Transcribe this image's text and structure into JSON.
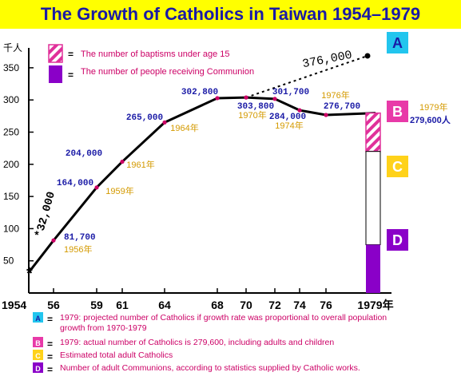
{
  "title": "The Growth of Catholics in Taiwan 1954–1979",
  "colors": {
    "title_bg": "#ffff00",
    "title_text": "#1a1aa6",
    "line": "#000000",
    "point": "#cc0066",
    "value_label": "#1a1aa6",
    "year_label": "#d49a00",
    "note": "#cc0066",
    "baptism": "#e0309a",
    "communion": "#8a00c8",
    "box_a": "#22c5ee",
    "box_b": "#e83aa8",
    "box_c": "#ffd21a",
    "box_d": "#8a00c8",
    "box_letter_a": "#1a1aa6"
  },
  "legend": {
    "items": [
      {
        "label": "The number of baptisms under age 15"
      },
      {
        "label": "The number of people receiving Communion"
      }
    ],
    "equals": "="
  },
  "chart_data": {
    "type": "line",
    "title": "The Growth of Catholics in Taiwan 1954–1979",
    "y_unit": "千人",
    "ylim": [
      0,
      375
    ],
    "y_ticks": [
      50,
      100,
      150,
      200,
      250,
      300,
      350
    ],
    "x_ticks": [
      "1954",
      "56",
      "59",
      "61",
      "64",
      "68",
      "70",
      "72",
      "74",
      "76",
      "1979年"
    ],
    "x_tick_years": [
      1954,
      1956,
      1959,
      1961,
      1964,
      1968,
      1970,
      1972,
      1974,
      1976,
      1979
    ],
    "grid": false,
    "legend_position": "top-left",
    "series": [
      {
        "points": [
          {
            "x": 1954,
            "y": 32,
            "value": "*32,000",
            "year": ""
          },
          {
            "x": 1956,
            "y": 81.7,
            "value": "81,700",
            "year": "1956年"
          },
          {
            "x": 1959,
            "y": 164,
            "value": "164,000",
            "year": "1959年"
          },
          {
            "x": 1961,
            "y": 204,
            "value": "204,000",
            "year": "1961年"
          },
          {
            "x": 1964,
            "y": 265,
            "value": "265,000",
            "year": "1964年"
          },
          {
            "x": 1968,
            "y": 302.8,
            "value": "302,800",
            "year": ""
          },
          {
            "x": 1970,
            "y": 303.8,
            "value": "303,800",
            "year": "1970年"
          },
          {
            "x": 1972,
            "y": 301.7,
            "value": "301,700",
            "year": ""
          },
          {
            "x": 1974,
            "y": 284,
            "value": "284,000",
            "year": "1974年"
          },
          {
            "x": 1976,
            "y": 276.7,
            "value": "276,700",
            "year": "1976年"
          },
          {
            "x": 1979,
            "y": 279.6,
            "value": "279,600人",
            "year": "1979年"
          }
        ]
      }
    ],
    "projection": {
      "from_x": 1970,
      "from_y": 303.8,
      "to_x": 1979,
      "to_y": 376,
      "label": "376,000"
    },
    "bar_1979": {
      "total": 279.6,
      "adult_catholics_lower": 75,
      "baptisms_under_15_range": [
        220,
        279.6
      ],
      "communion": 75
    }
  },
  "markers": {
    "start_star": "*"
  },
  "boxes": [
    {
      "letter": "A"
    },
    {
      "letter": "B"
    },
    {
      "letter": "C"
    },
    {
      "letter": "D"
    }
  ],
  "notes": [
    {
      "letter": "A",
      "lines": [
        "1979: projected number of Catholics if growth rate was proportional to overall population",
        "growth from 1970-1979"
      ]
    },
    {
      "letter": "B",
      "lines": [
        "1979: actual number of Catholics is 279,600, including adults and children"
      ]
    },
    {
      "letter": "C",
      "lines": [
        "Estimated total adult Catholics"
      ]
    },
    {
      "letter": "D",
      "lines": [
        "Number of adult Communions, according to statistics supplied by Catholic works."
      ]
    }
  ]
}
